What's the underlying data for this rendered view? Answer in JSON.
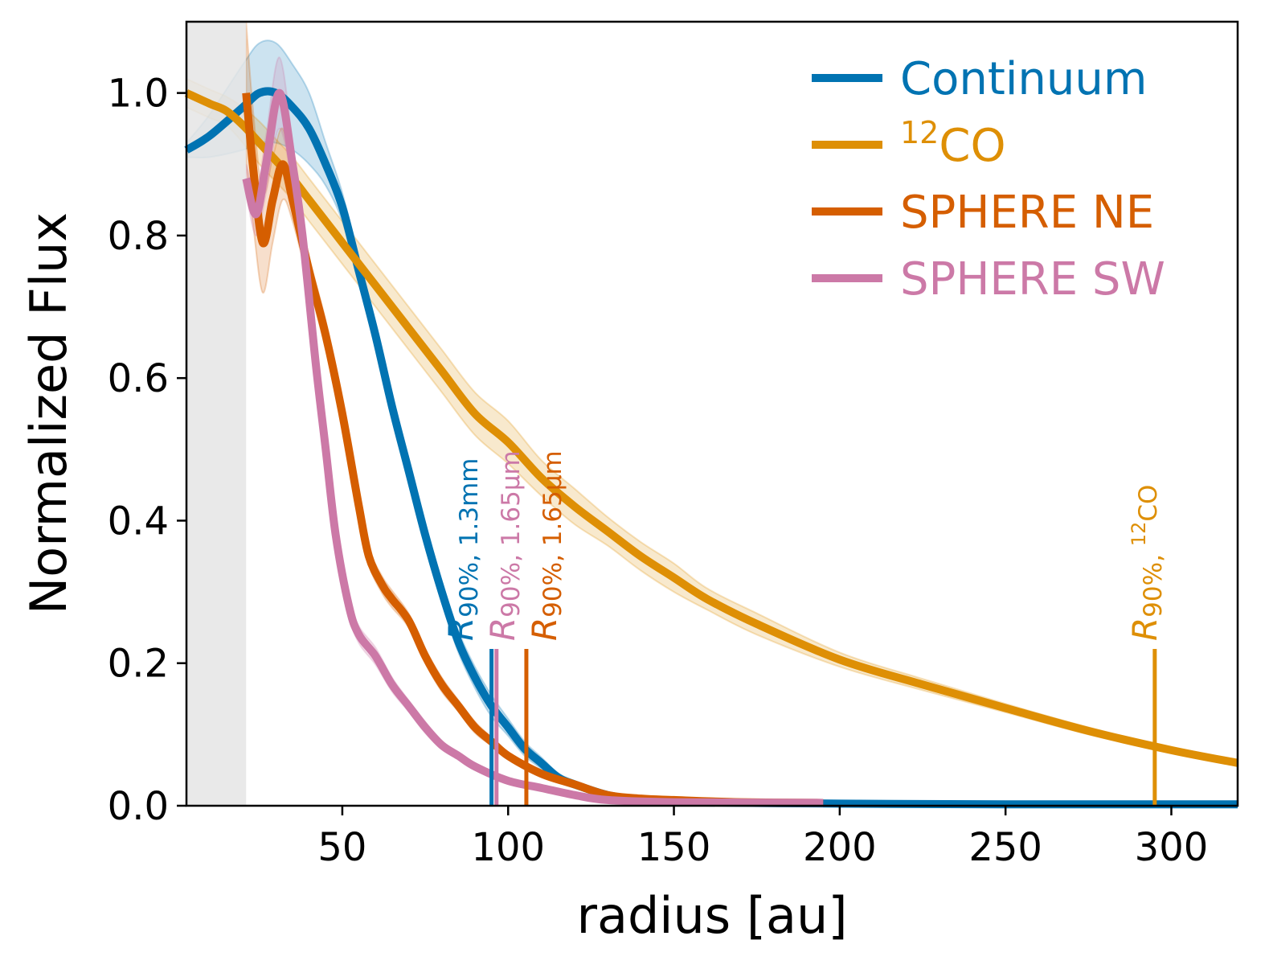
{
  "chart_data": {
    "type": "line",
    "title": "",
    "xlabel": "radius [au]",
    "ylabel": "Normalized Flux",
    "xlim": [
      3,
      320
    ],
    "ylim": [
      0,
      1.1
    ],
    "xticks": [
      50,
      100,
      150,
      200,
      250,
      300
    ],
    "xtick_labels": [
      "50",
      "100",
      "150",
      "200",
      "250",
      "300"
    ],
    "yticks": [
      0.0,
      0.2,
      0.4,
      0.6,
      0.8,
      1.0
    ],
    "ytick_labels": [
      "0.0",
      "0.2",
      "0.4",
      "0.6",
      "0.8",
      "1.0"
    ],
    "grid": false,
    "legend_placement": "top-right",
    "shaded_region": {
      "x": [
        3,
        21
      ],
      "color": "#e5e5e5"
    },
    "series": [
      {
        "name": "Continuum",
        "color": "#0173b2",
        "x": [
          3,
          10,
          20,
          25,
          30,
          35,
          40,
          45,
          50,
          55,
          60,
          65,
          70,
          75,
          80,
          85,
          90,
          95,
          100,
          105,
          110,
          115,
          120,
          130,
          140,
          150,
          200,
          250,
          320
        ],
        "y": [
          0.92,
          0.94,
          0.98,
          1.0,
          1.0,
          0.98,
          0.95,
          0.9,
          0.84,
          0.75,
          0.66,
          0.56,
          0.47,
          0.38,
          0.3,
          0.23,
          0.18,
          0.14,
          0.11,
          0.08,
          0.06,
          0.04,
          0.03,
          0.015,
          0.008,
          0.005,
          0.003,
          0.002,
          0.002
        ],
        "err": [
          0.01,
          0.03,
          0.06,
          0.07,
          0.07,
          0.06,
          0.05,
          0.03,
          0.02,
          0.015,
          0.015,
          0.015,
          0.015,
          0.015,
          0.015,
          0.015,
          0.015,
          0.015,
          0.012,
          0.01,
          0.008,
          0.006,
          0.005,
          0.003,
          0.002,
          0.001,
          0.001,
          0.001,
          0.001
        ]
      },
      {
        "name": "12CO",
        "label_main": "CO",
        "label_sup": "12",
        "color": "#de8f05",
        "x": [
          3,
          10,
          15,
          20,
          25,
          30,
          35,
          40,
          50,
          60,
          70,
          80,
          90,
          100,
          110,
          120,
          130,
          140,
          150,
          160,
          175,
          200,
          225,
          250,
          275,
          300,
          320
        ],
        "y": [
          1.0,
          0.985,
          0.975,
          0.955,
          0.93,
          0.905,
          0.88,
          0.85,
          0.79,
          0.73,
          0.67,
          0.61,
          0.55,
          0.51,
          0.46,
          0.42,
          0.385,
          0.35,
          0.32,
          0.29,
          0.255,
          0.205,
          0.17,
          0.137,
          0.105,
          0.078,
          0.06
        ],
        "err": [
          0.02,
          0.02,
          0.02,
          0.025,
          0.03,
          0.03,
          0.03,
          0.03,
          0.03,
          0.03,
          0.03,
          0.03,
          0.03,
          0.03,
          0.025,
          0.025,
          0.02,
          0.02,
          0.02,
          0.015,
          0.015,
          0.01,
          0.008,
          0.006,
          0.005,
          0.004,
          0.004
        ]
      },
      {
        "name": "SPHERE NE",
        "color": "#d55e00",
        "x": [
          21,
          23,
          26,
          29,
          32,
          35,
          40,
          45,
          50,
          55,
          58,
          62,
          65,
          70,
          75,
          80,
          85,
          90,
          95,
          100,
          110,
          120,
          130,
          140,
          150,
          170,
          195
        ],
        "y": [
          1.0,
          0.9,
          0.79,
          0.85,
          0.9,
          0.85,
          0.75,
          0.66,
          0.55,
          0.42,
          0.35,
          0.31,
          0.29,
          0.26,
          0.21,
          0.17,
          0.14,
          0.11,
          0.09,
          0.07,
          0.045,
          0.03,
          0.015,
          0.01,
          0.008,
          0.005,
          0.004
        ],
        "err": [
          0.1,
          0.08,
          0.07,
          0.06,
          0.05,
          0.03,
          0.02,
          0.02,
          0.015,
          0.012,
          0.012,
          0.012,
          0.012,
          0.01,
          0.01,
          0.01,
          0.008,
          0.008,
          0.006,
          0.005,
          0.004,
          0.003,
          0.002,
          0.002,
          0.001,
          0.001,
          0.001
        ]
      },
      {
        "name": "SPHERE SW",
        "color": "#cc79a7",
        "x": [
          21,
          24,
          27,
          31,
          35,
          38,
          42,
          45,
          48,
          52,
          55,
          60,
          65,
          70,
          75,
          80,
          85,
          90,
          100,
          110,
          120,
          130,
          150,
          195
        ],
        "y": [
          0.88,
          0.83,
          0.9,
          1.0,
          0.9,
          0.8,
          0.62,
          0.5,
          0.38,
          0.28,
          0.24,
          0.21,
          0.17,
          0.14,
          0.11,
          0.085,
          0.07,
          0.055,
          0.035,
          0.025,
          0.015,
          0.008,
          0.005,
          0.004
        ],
        "err": [
          0.02,
          0.03,
          0.04,
          0.05,
          0.03,
          0.02,
          0.015,
          0.012,
          0.012,
          0.012,
          0.012,
          0.012,
          0.01,
          0.008,
          0.008,
          0.006,
          0.005,
          0.004,
          0.003,
          0.002,
          0.002,
          0.001,
          0.001,
          0.001
        ]
      }
    ],
    "markers": [
      {
        "x": 95,
        "height": 0.22,
        "color": "#0173b2",
        "label_R": "R",
        "label_sub": "90%, 1.3mm"
      },
      {
        "x": 96.5,
        "height": 0.22,
        "color": "#cc79a7",
        "label_R": "R",
        "label_sub": "90%, 1.65μm"
      },
      {
        "x": 105.5,
        "height": 0.22,
        "color": "#d55e00",
        "label_R": "R",
        "label_sub": "90%, 1.65μm"
      },
      {
        "x": 295,
        "height": 0.22,
        "color": "#de8f05",
        "label_R": "R",
        "label_sub": "90%, ",
        "label_sup": "12",
        "label_tail": "CO"
      }
    ]
  }
}
